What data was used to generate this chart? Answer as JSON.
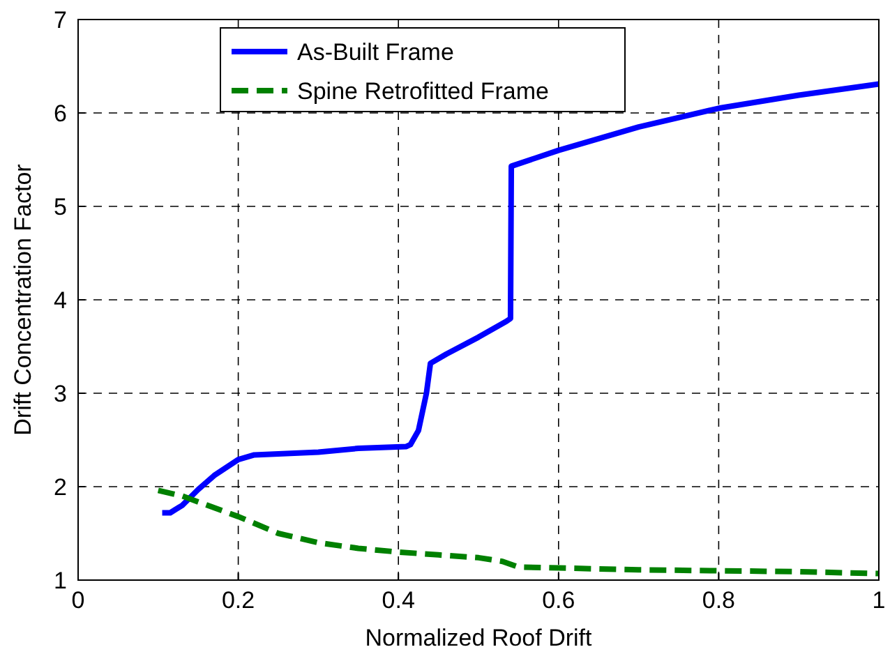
{
  "chart_data": {
    "type": "line",
    "xlabel": "Normalized Roof Drift",
    "ylabel": "Drift Concentration Factor",
    "xlim": [
      0,
      1
    ],
    "xticks": [
      0,
      0.2,
      0.4,
      0.6,
      0.8,
      1
    ],
    "ylim": [
      1,
      7
    ],
    "yticks": [
      1,
      2,
      3,
      4,
      5,
      6,
      7
    ],
    "grid": true,
    "legend": "top",
    "series": [
      {
        "name": "As-Built Frame",
        "color": "#0000ff",
        "line_style": "solid",
        "x": [
          0.105,
          0.115,
          0.13,
          0.15,
          0.17,
          0.2,
          0.22,
          0.3,
          0.35,
          0.41,
          0.415,
          0.425,
          0.435,
          0.44,
          0.46,
          0.5,
          0.535,
          0.54,
          0.541,
          0.6,
          0.7,
          0.8,
          0.9,
          1.0
        ],
        "values": [
          1.72,
          1.72,
          1.8,
          1.97,
          2.12,
          2.29,
          2.34,
          2.37,
          2.41,
          2.43,
          2.45,
          2.6,
          3.0,
          3.32,
          3.42,
          3.6,
          3.77,
          3.8,
          5.43,
          5.6,
          5.85,
          6.05,
          6.19,
          6.31
        ]
      },
      {
        "name": "Spine Retrofitted Frame",
        "color": "#008000",
        "line_style": "dashed",
        "x": [
          0.1,
          0.13,
          0.2,
          0.25,
          0.3,
          0.35,
          0.4,
          0.45,
          0.5,
          0.53,
          0.55,
          0.6,
          0.7,
          0.8,
          0.9,
          1.0
        ],
        "values": [
          1.96,
          1.9,
          1.68,
          1.5,
          1.4,
          1.34,
          1.3,
          1.27,
          1.24,
          1.2,
          1.14,
          1.13,
          1.11,
          1.1,
          1.09,
          1.07
        ]
      }
    ]
  }
}
